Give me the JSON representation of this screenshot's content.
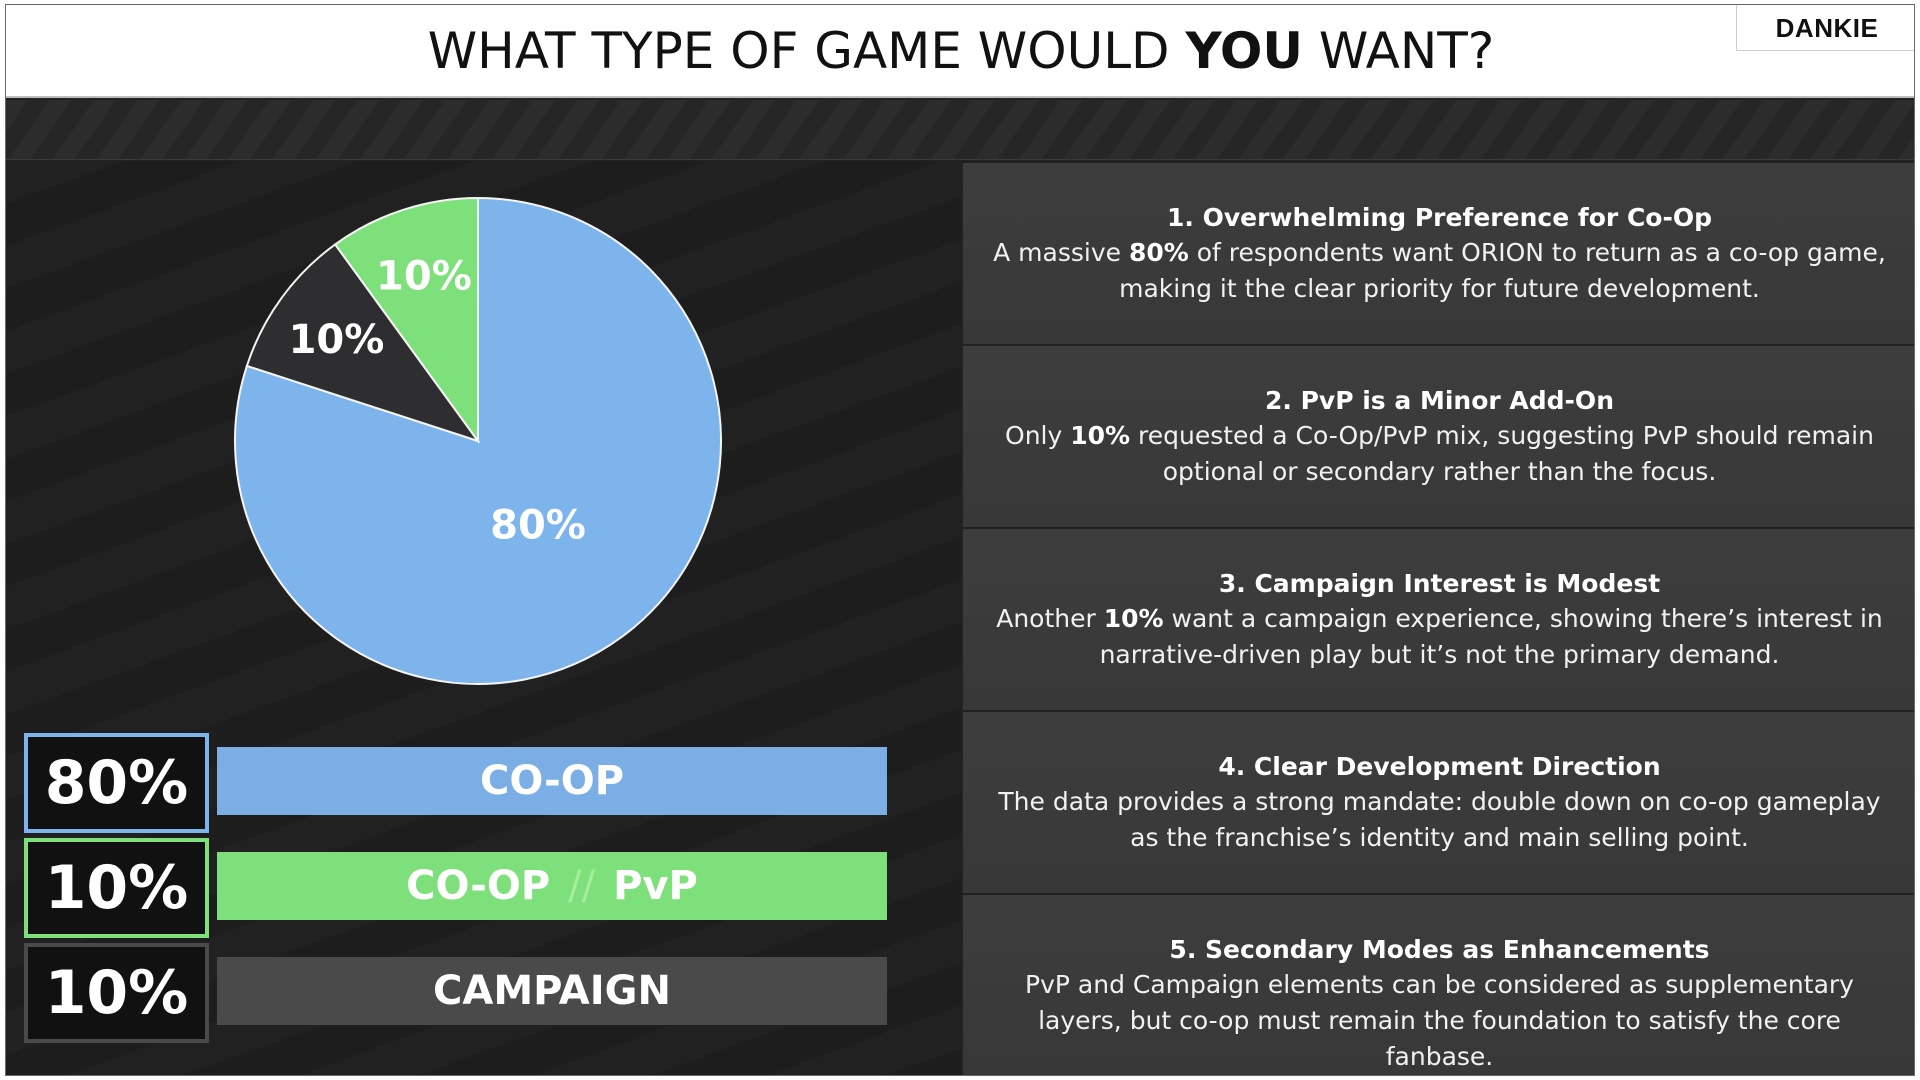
{
  "header": {
    "title_pre": "WHAT TYPE OF GAME WOULD",
    "title_em": "YOU",
    "title_post": "WANT?",
    "logo": "DANKIE"
  },
  "chart_data": {
    "type": "pie",
    "title": "",
    "slices": [
      {
        "label": "CO-OP",
        "value": 80,
        "display": "80%",
        "color": "#7eb4ec"
      },
      {
        "label": "CO-OP // PvP",
        "value": 10,
        "display": "10%",
        "color": "#7ee07a"
      },
      {
        "label": "CAMPAIGN",
        "value": 10,
        "display": "10%",
        "color": "#2e2e30"
      }
    ],
    "start_angle_deg": 0,
    "direction": "clockwise",
    "order": [
      0,
      2,
      1
    ]
  },
  "legend": [
    {
      "pct": "80%",
      "label": "CO-OP",
      "color": "#7eb4ec",
      "bar_color": "#7aaee4"
    },
    {
      "pct": "10%",
      "label_a": "CO-OP",
      "separator": "//",
      "label_b": "PvP",
      "color": "#7ee07a",
      "bar_color": "#7ee07a"
    },
    {
      "pct": "10%",
      "label": "CAMPAIGN",
      "color": "#4a4a4a",
      "bar_color": "#4a4a4a"
    }
  ],
  "insights": [
    {
      "heading": "1. Overwhelming Preference for Co-Op",
      "pre": "A massive ",
      "bold": "80%",
      "post": " of respondents want ORION to return as a co-op game, making it the clear priority for future development."
    },
    {
      "heading": "2. PvP is a Minor Add-On",
      "pre": "Only ",
      "bold": "10%",
      "post": " requested a Co-Op/PvP mix, suggesting PvP should remain optional or secondary rather than the focus."
    },
    {
      "heading": "3. Campaign Interest is Modest",
      "pre": "Another ",
      "bold": "10%",
      "post": " want a campaign experience, showing there’s interest in narrative-driven play but it’s not the primary demand."
    },
    {
      "heading": "4. Clear Development Direction",
      "pre": "",
      "bold": "",
      "post": "The data provides a strong mandate: double down on co-op gameplay as the franchise’s identity and main selling point."
    },
    {
      "heading": "5. Secondary Modes as Enhancements",
      "pre": "",
      "bold": "",
      "post": "PvP and Campaign elements can be considered as supplementary layers, but co-op must remain the foundation to satisfy the core fanbase."
    }
  ]
}
